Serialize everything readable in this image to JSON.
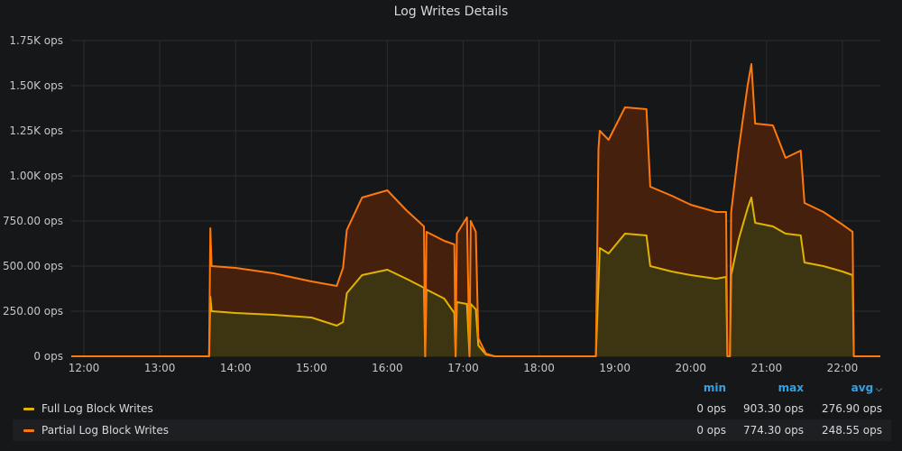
{
  "panel": {
    "title": "Log Writes Details"
  },
  "legend": {
    "headers": {
      "min": "min",
      "max": "max",
      "avg": "avg",
      "sort_icon": "chevron-down-icon"
    },
    "rows": [
      {
        "name": "Full Log Block Writes",
        "color": "#e0b400",
        "min": "0 ops",
        "max": "903.30 ops",
        "avg": "276.90 ops"
      },
      {
        "name": "Partial Log Block Writes",
        "color": "#ff780a",
        "min": "0 ops",
        "max": "774.30 ops",
        "avg": "248.55 ops"
      }
    ]
  },
  "chart_data": {
    "type": "area",
    "title": "Log Writes Details",
    "stacked": true,
    "x_range": [
      "11:50",
      "22:30"
    ],
    "y_range": [
      0,
      1750
    ],
    "x_ticks": [
      "12:00",
      "13:00",
      "14:00",
      "15:00",
      "16:00",
      "17:00",
      "18:00",
      "19:00",
      "20:00",
      "21:00",
      "22:00"
    ],
    "y_ticks": [
      {
        "value": 0,
        "label": "0 ops"
      },
      {
        "value": 250,
        "label": "250.00 ops"
      },
      {
        "value": 500,
        "label": "500.00 ops"
      },
      {
        "value": 750,
        "label": "750.00 ops"
      },
      {
        "value": 1000,
        "label": "1.00K ops"
      },
      {
        "value": 1250,
        "label": "1.25K ops"
      },
      {
        "value": 1500,
        "label": "1.50K ops"
      },
      {
        "value": 1750,
        "label": "1.75K ops"
      }
    ],
    "grid": true,
    "legend_position": "bottom",
    "colors": {
      "full_line": "#e0b400",
      "full_fill": "#3d3512",
      "partial_line": "#ff780a",
      "partial_fill": "#45200c",
      "grid": "#2c2d30",
      "background": "#161719"
    },
    "series": [
      {
        "name": "Full Log Block Writes",
        "points": [
          [
            "11:50",
            0
          ],
          [
            "13:39",
            0
          ],
          [
            "13:40",
            330
          ],
          [
            "13:41",
            250
          ],
          [
            "14:00",
            240
          ],
          [
            "14:30",
            230
          ],
          [
            "15:00",
            215
          ],
          [
            "15:20",
            170
          ],
          [
            "15:25",
            190
          ],
          [
            "15:28",
            350
          ],
          [
            "15:40",
            450
          ],
          [
            "16:00",
            480
          ],
          [
            "16:15",
            430
          ],
          [
            "16:29",
            380
          ],
          [
            "16:30",
            0
          ],
          [
            "16:31",
            370
          ],
          [
            "16:45",
            320
          ],
          [
            "16:53",
            240
          ],
          [
            "16:54",
            0
          ],
          [
            "16:55",
            300
          ],
          [
            "17:03",
            290
          ],
          [
            "17:05",
            0
          ],
          [
            "17:06",
            290
          ],
          [
            "17:10",
            260
          ],
          [
            "17:12",
            60
          ],
          [
            "17:18",
            10
          ],
          [
            "17:25",
            0
          ],
          [
            "18:45",
            0
          ],
          [
            "18:47",
            400
          ],
          [
            "18:48",
            600
          ],
          [
            "18:55",
            570
          ],
          [
            "19:08",
            680
          ],
          [
            "19:25",
            670
          ],
          [
            "19:28",
            500
          ],
          [
            "19:45",
            470
          ],
          [
            "20:00",
            450
          ],
          [
            "20:20",
            430
          ],
          [
            "20:28",
            440
          ],
          [
            "20:29",
            0
          ],
          [
            "20:31",
            0
          ],
          [
            "20:32",
            450
          ],
          [
            "20:38",
            650
          ],
          [
            "20:45",
            820
          ],
          [
            "20:48",
            880
          ],
          [
            "20:51",
            740
          ],
          [
            "21:05",
            720
          ],
          [
            "21:15",
            680
          ],
          [
            "21:27",
            670
          ],
          [
            "21:30",
            520
          ],
          [
            "21:45",
            500
          ],
          [
            "22:00",
            470
          ],
          [
            "22:08",
            450
          ],
          [
            "22:09",
            0
          ],
          [
            "22:30",
            0
          ]
        ]
      },
      {
        "name": "Partial Log Block Writes",
        "points": [
          [
            "11:50",
            0
          ],
          [
            "13:39",
            0
          ],
          [
            "13:40",
            380
          ],
          [
            "13:41",
            250
          ],
          [
            "14:00",
            250
          ],
          [
            "14:30",
            230
          ],
          [
            "15:00",
            200
          ],
          [
            "15:20",
            220
          ],
          [
            "15:25",
            300
          ],
          [
            "15:28",
            350
          ],
          [
            "15:40",
            430
          ],
          [
            "16:00",
            440
          ],
          [
            "16:15",
            380
          ],
          [
            "16:29",
            340
          ],
          [
            "16:30",
            0
          ],
          [
            "16:31",
            320
          ],
          [
            "16:45",
            320
          ],
          [
            "16:53",
            380
          ],
          [
            "16:54",
            0
          ],
          [
            "16:55",
            380
          ],
          [
            "17:03",
            480
          ],
          [
            "17:05",
            0
          ],
          [
            "17:06",
            460
          ],
          [
            "17:10",
            430
          ],
          [
            "17:12",
            40
          ],
          [
            "17:18",
            5
          ],
          [
            "17:25",
            0
          ],
          [
            "18:45",
            0
          ],
          [
            "18:47",
            750
          ],
          [
            "18:48",
            650
          ],
          [
            "18:55",
            630
          ],
          [
            "19:08",
            700
          ],
          [
            "19:25",
            700
          ],
          [
            "19:28",
            440
          ],
          [
            "19:45",
            420
          ],
          [
            "20:00",
            390
          ],
          [
            "20:20",
            370
          ],
          [
            "20:28",
            360
          ],
          [
            "20:29",
            0
          ],
          [
            "20:31",
            0
          ],
          [
            "20:32",
            350
          ],
          [
            "20:38",
            500
          ],
          [
            "20:45",
            680
          ],
          [
            "20:48",
            740
          ],
          [
            "20:51",
            550
          ],
          [
            "21:05",
            560
          ],
          [
            "21:15",
            420
          ],
          [
            "21:27",
            470
          ],
          [
            "21:30",
            330
          ],
          [
            "21:45",
            300
          ],
          [
            "22:00",
            260
          ],
          [
            "22:08",
            240
          ],
          [
            "22:09",
            0
          ],
          [
            "22:30",
            0
          ]
        ]
      }
    ]
  }
}
